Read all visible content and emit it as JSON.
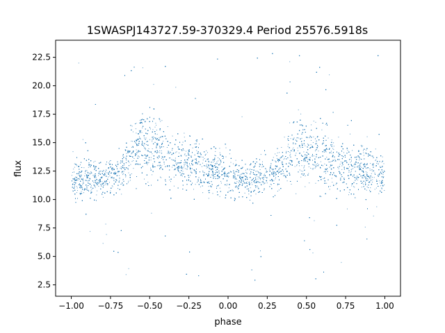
{
  "chart_data": {
    "type": "scatter",
    "title": "1SWASPJ143727.59-370329.4 Period 25576.5918s",
    "xlabel": "phase",
    "ylabel": "flux",
    "xlim": [
      -1.1,
      1.1
    ],
    "ylim": [
      1.5,
      24.0
    ],
    "xticks": [
      -1.0,
      -0.75,
      -0.5,
      -0.25,
      0.0,
      0.25,
      0.5,
      0.75,
      1.0
    ],
    "xtick_labels": [
      "−1.00",
      "−0.75",
      "−0.50",
      "−0.25",
      "0.00",
      "0.25",
      "0.50",
      "0.75",
      "1.00"
    ],
    "yticks": [
      2.5,
      5.0,
      7.5,
      10.0,
      12.5,
      15.0,
      17.5,
      20.0,
      22.5
    ],
    "ytick_labels": [
      "2.5",
      "5.0",
      "7.5",
      "10.0",
      "12.5",
      "15.0",
      "17.5",
      "20.0",
      "22.5"
    ],
    "grid": false,
    "series": [
      {
        "color": "#1f77b4",
        "x_range": [
          -1.0,
          1.0
        ],
        "profile_phase": [
          0.0,
          0.1,
          0.2,
          0.3,
          0.35,
          0.4,
          0.45,
          0.5,
          0.6,
          0.7,
          0.8,
          0.9,
          1.0
        ],
        "profile_upper_flux": [
          14.2,
          14.0,
          13.8,
          14.3,
          15.5,
          17.5,
          18.8,
          18.7,
          17.2,
          16.2,
          15.6,
          15.0,
          14.5
        ],
        "profile_lower_flux": [
          9.5,
          9.6,
          9.9,
          10.2,
          10.8,
          11.2,
          11.0,
          10.8,
          10.4,
          10.2,
          10.2,
          10.1,
          9.7
        ],
        "outlier_flux_range": [
          2.7,
          23.0
        ]
      }
    ]
  }
}
